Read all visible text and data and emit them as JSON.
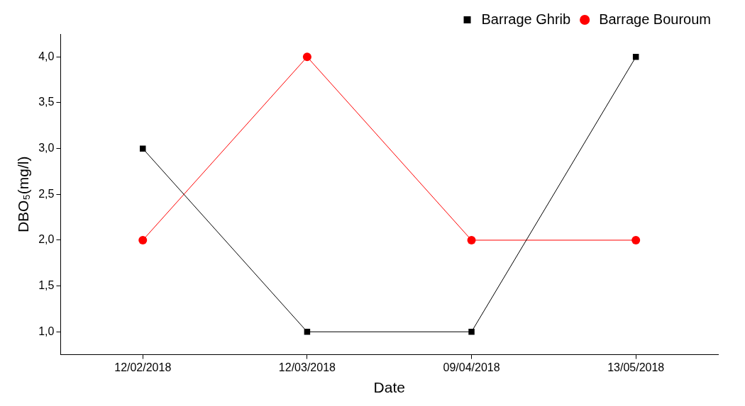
{
  "chart_data": {
    "type": "line",
    "xlabel": "Date",
    "ylabel": "DBO₅(mg/l)",
    "categories": [
      "12/02/2018",
      "12/03/2018",
      "09/04/2018",
      "13/05/2018"
    ],
    "series": [
      {
        "name": "Barrage Ghrib",
        "color": "#000000",
        "marker": "square",
        "values": [
          3,
          1,
          1,
          4
        ]
      },
      {
        "name": "Barrage Bouroum",
        "color": "#ff0000",
        "marker": "circle",
        "values": [
          2,
          4,
          2,
          2
        ]
      }
    ],
    "ylim": [
      0.75,
      4.25
    ],
    "yticks": [
      {
        "value": 1,
        "label": "1,0"
      },
      {
        "value": 1.5,
        "label": "1,5"
      },
      {
        "value": 2,
        "label": "2,0"
      },
      {
        "value": 2.5,
        "label": "2,5"
      },
      {
        "value": 3,
        "label": "3,0"
      },
      {
        "value": 3.5,
        "label": "3,5"
      },
      {
        "value": 4,
        "label": "4,0"
      }
    ],
    "grid": false,
    "legend": "top right",
    "line_style": "solid"
  }
}
